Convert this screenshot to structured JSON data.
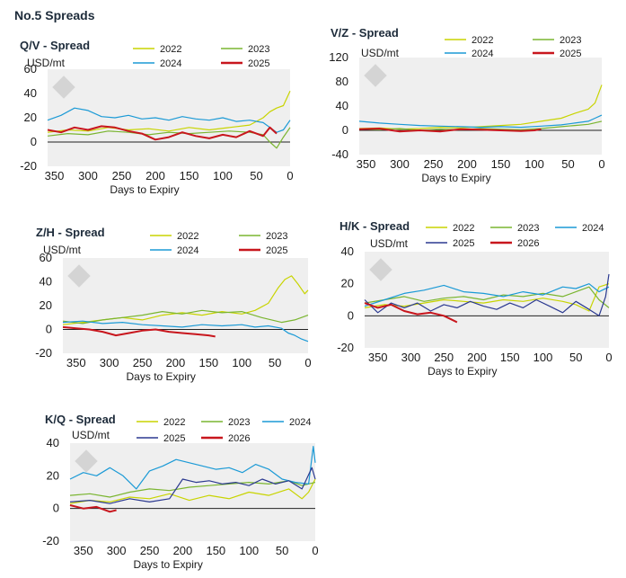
{
  "page": {
    "title": "No.5 Spreads"
  },
  "series_colors": {
    "2022": "#c8d400",
    "2023": "#7ab530",
    "2024": "#1b9ad6",
    "2025": "#2b3990",
    "2026": "#c8161d"
  },
  "chart_data": [
    {
      "type": "line",
      "title": "Q/V - Spread",
      "ylabel": "USD/mt",
      "xlabel": "Days to Expiry",
      "ylim": [
        -20,
        60
      ],
      "yticks": [
        -20,
        0,
        20,
        40,
        60
      ],
      "xlim": [
        360,
        0
      ],
      "xticks": [
        350,
        300,
        250,
        200,
        150,
        100,
        50,
        0
      ],
      "series": [
        {
          "name": "2022",
          "color": "#c8d400",
          "x": [
            360,
            330,
            300,
            270,
            240,
            210,
            180,
            150,
            120,
            90,
            60,
            40,
            30,
            20,
            10,
            0
          ],
          "values": [
            8,
            10,
            9,
            12,
            10,
            11,
            9,
            12,
            10,
            12,
            14,
            20,
            25,
            28,
            30,
            42
          ]
        },
        {
          "name": "2023",
          "color": "#7ab530",
          "x": [
            360,
            330,
            300,
            270,
            240,
            210,
            180,
            150,
            120,
            90,
            60,
            40,
            30,
            20,
            10,
            0
          ],
          "values": [
            5,
            7,
            6,
            9,
            8,
            6,
            8,
            7,
            8,
            9,
            8,
            6,
            0,
            -5,
            4,
            12
          ]
        },
        {
          "name": "2024",
          "color": "#1b9ad6",
          "x": [
            360,
            340,
            320,
            300,
            280,
            260,
            240,
            220,
            200,
            180,
            160,
            140,
            120,
            100,
            80,
            60,
            40,
            20,
            10,
            0
          ],
          "values": [
            18,
            22,
            28,
            26,
            21,
            20,
            22,
            19,
            20,
            18,
            21,
            19,
            18,
            20,
            17,
            18,
            16,
            8,
            10,
            18
          ]
        },
        {
          "name": "2025",
          "color": "#c8161d",
          "x": [
            360,
            340,
            320,
            300,
            280,
            260,
            240,
            220,
            200,
            180,
            160,
            140,
            120,
            100,
            80,
            60,
            40,
            30,
            20
          ],
          "values": [
            10,
            8,
            12,
            10,
            13,
            12,
            9,
            7,
            2,
            4,
            8,
            5,
            3,
            6,
            4,
            9,
            5,
            12,
            7
          ]
        }
      ]
    },
    {
      "type": "line",
      "title": "V/Z - Spread",
      "ylabel": "USD/mt",
      "xlabel": "Days to Expiry",
      "ylim": [
        -40,
        120
      ],
      "yticks": [
        -40,
        0,
        40,
        80,
        120
      ],
      "xlim": [
        360,
        0
      ],
      "xticks": [
        350,
        300,
        250,
        200,
        150,
        100,
        50,
        0
      ],
      "series": [
        {
          "name": "2022",
          "color": "#c8d400",
          "x": [
            360,
            330,
            300,
            270,
            240,
            210,
            180,
            150,
            120,
            90,
            60,
            40,
            20,
            10,
            0
          ],
          "values": [
            3,
            4,
            2,
            3,
            5,
            4,
            6,
            8,
            10,
            15,
            20,
            28,
            35,
            45,
            75
          ]
        },
        {
          "name": "2023",
          "color": "#7ab530",
          "x": [
            360,
            330,
            300,
            270,
            240,
            210,
            180,
            150,
            120,
            90,
            60,
            40,
            20,
            0
          ],
          "values": [
            2,
            1,
            3,
            0,
            2,
            1,
            3,
            2,
            1,
            3,
            6,
            8,
            10,
            15
          ]
        },
        {
          "name": "2024",
          "color": "#1b9ad6",
          "x": [
            360,
            330,
            300,
            270,
            240,
            210,
            180,
            150,
            120,
            90,
            60,
            40,
            20,
            10,
            0
          ],
          "values": [
            15,
            12,
            10,
            8,
            7,
            6,
            5,
            6,
            5,
            7,
            9,
            12,
            15,
            20,
            25
          ]
        },
        {
          "name": "2025",
          "color": "#c8161d",
          "x": [
            360,
            330,
            300,
            270,
            240,
            210,
            180,
            150,
            120,
            100,
            90
          ],
          "values": [
            2,
            3,
            -2,
            0,
            -2,
            2,
            1,
            0,
            -1,
            0,
            2
          ]
        }
      ]
    },
    {
      "type": "line",
      "title": "Z/H - Spread",
      "ylabel": "USD/mt",
      "xlabel": "Days to Expiry",
      "ylim": [
        -20,
        60
      ],
      "yticks": [
        -20,
        0,
        20,
        40,
        60
      ],
      "xlim": [
        370,
        0
      ],
      "xticks": [
        350,
        300,
        250,
        200,
        150,
        100,
        50,
        0
      ],
      "series": [
        {
          "name": "2022",
          "color": "#c8d400",
          "x": [
            370,
            340,
            310,
            280,
            250,
            220,
            190,
            160,
            130,
            100,
            80,
            60,
            45,
            35,
            25,
            15,
            5,
            0
          ],
          "values": [
            4,
            6,
            8,
            10,
            8,
            12,
            14,
            12,
            15,
            13,
            16,
            22,
            35,
            42,
            45,
            38,
            30,
            33
          ]
        },
        {
          "name": "2023",
          "color": "#7ab530",
          "x": [
            370,
            340,
            310,
            280,
            250,
            220,
            190,
            160,
            130,
            100,
            70,
            40,
            20,
            0
          ],
          "values": [
            7,
            5,
            8,
            10,
            12,
            15,
            13,
            16,
            14,
            15,
            10,
            6,
            8,
            12
          ]
        },
        {
          "name": "2024",
          "color": "#1b9ad6",
          "x": [
            370,
            340,
            310,
            280,
            250,
            220,
            190,
            160,
            130,
            100,
            80,
            60,
            40,
            30,
            20,
            10,
            0
          ],
          "values": [
            6,
            7,
            5,
            6,
            4,
            3,
            2,
            4,
            3,
            4,
            2,
            3,
            1,
            -3,
            -5,
            -8,
            -10
          ]
        },
        {
          "name": "2025",
          "color": "#c8161d",
          "x": [
            370,
            350,
            330,
            310,
            290,
            270,
            250,
            230,
            210,
            190,
            170,
            150,
            140
          ],
          "values": [
            2,
            1,
            0,
            -2,
            -5,
            -3,
            -1,
            0,
            -2,
            -3,
            -4,
            -5,
            -6
          ]
        }
      ]
    },
    {
      "type": "line",
      "title": "H/K - Spread",
      "ylabel": "USD/mt",
      "xlabel": "Days to Expiry",
      "ylim": [
        -20,
        40
      ],
      "yticks": [
        -20,
        0,
        20,
        40
      ],
      "xlim": [
        370,
        0
      ],
      "xticks": [
        350,
        300,
        250,
        200,
        150,
        100,
        50,
        0
      ],
      "series": [
        {
          "name": "2022",
          "color": "#c8d400",
          "x": [
            370,
            340,
            310,
            280,
            250,
            220,
            190,
            160,
            130,
            100,
            70,
            50,
            30,
            15,
            0
          ],
          "values": [
            5,
            7,
            6,
            8,
            10,
            9,
            8,
            10,
            9,
            11,
            9,
            7,
            3,
            18,
            20
          ]
        },
        {
          "name": "2023",
          "color": "#7ab530",
          "x": [
            370,
            340,
            310,
            280,
            250,
            220,
            190,
            160,
            130,
            100,
            70,
            50,
            30,
            15,
            0
          ],
          "values": [
            8,
            10,
            12,
            9,
            11,
            12,
            10,
            13,
            12,
            14,
            12,
            15,
            18,
            10,
            5
          ]
        },
        {
          "name": "2024",
          "color": "#1b9ad6",
          "x": [
            370,
            340,
            310,
            280,
            250,
            220,
            190,
            160,
            130,
            100,
            70,
            50,
            30,
            15,
            0
          ],
          "values": [
            6,
            10,
            14,
            16,
            19,
            15,
            14,
            12,
            15,
            13,
            18,
            17,
            20,
            15,
            18
          ]
        },
        {
          "name": "2025",
          "color": "#2b3990",
          "x": [
            370,
            350,
            330,
            310,
            290,
            270,
            250,
            230,
            210,
            190,
            170,
            150,
            130,
            110,
            90,
            70,
            50,
            30,
            15,
            5,
            0
          ],
          "values": [
            10,
            2,
            8,
            5,
            8,
            3,
            7,
            5,
            9,
            6,
            4,
            8,
            5,
            10,
            6,
            2,
            9,
            4,
            0,
            12,
            26
          ]
        },
        {
          "name": "2026",
          "color": "#c8161d",
          "x": [
            370,
            350,
            330,
            310,
            290,
            270,
            250,
            230
          ],
          "values": [
            8,
            5,
            7,
            3,
            1,
            2,
            0,
            -4
          ]
        }
      ]
    },
    {
      "type": "line",
      "title": "K/Q - Spread",
      "ylabel": "USD/mt",
      "xlabel": "Days to Expiry",
      "ylim": [
        -20,
        40
      ],
      "yticks": [
        -20,
        0,
        20,
        40
      ],
      "xlim": [
        370,
        0
      ],
      "xticks": [
        350,
        300,
        250,
        200,
        150,
        100,
        50,
        0
      ],
      "series": [
        {
          "name": "2022",
          "color": "#c8d400",
          "x": [
            370,
            340,
            310,
            280,
            250,
            220,
            190,
            160,
            130,
            100,
            70,
            40,
            20,
            10,
            0
          ],
          "values": [
            3,
            5,
            4,
            7,
            6,
            9,
            5,
            8,
            6,
            10,
            8,
            12,
            6,
            10,
            18
          ]
        },
        {
          "name": "2023",
          "color": "#7ab530",
          "x": [
            370,
            340,
            310,
            280,
            250,
            220,
            190,
            160,
            130,
            100,
            70,
            40,
            20,
            0
          ],
          "values": [
            8,
            9,
            7,
            10,
            12,
            11,
            13,
            14,
            15,
            16,
            15,
            17,
            14,
            16
          ]
        },
        {
          "name": "2024",
          "color": "#1b9ad6",
          "x": [
            370,
            350,
            330,
            310,
            290,
            270,
            250,
            230,
            210,
            190,
            170,
            150,
            130,
            110,
            90,
            70,
            50,
            30,
            10,
            3,
            0
          ],
          "values": [
            18,
            22,
            20,
            25,
            20,
            12,
            23,
            26,
            30,
            28,
            26,
            24,
            25,
            22,
            27,
            24,
            18,
            16,
            15,
            38,
            28
          ]
        },
        {
          "name": "2025",
          "color": "#2b3990",
          "x": [
            370,
            340,
            310,
            280,
            250,
            220,
            200,
            180,
            160,
            140,
            120,
            100,
            80,
            60,
            40,
            20,
            5,
            0
          ],
          "values": [
            4,
            5,
            3,
            6,
            4,
            6,
            18,
            16,
            17,
            15,
            16,
            14,
            18,
            15,
            17,
            12,
            25,
            18
          ]
        },
        {
          "name": "2026",
          "color": "#c8161d",
          "x": [
            370,
            350,
            330,
            310,
            300
          ],
          "values": [
            2,
            0,
            1,
            -2,
            -1
          ]
        }
      ]
    }
  ]
}
